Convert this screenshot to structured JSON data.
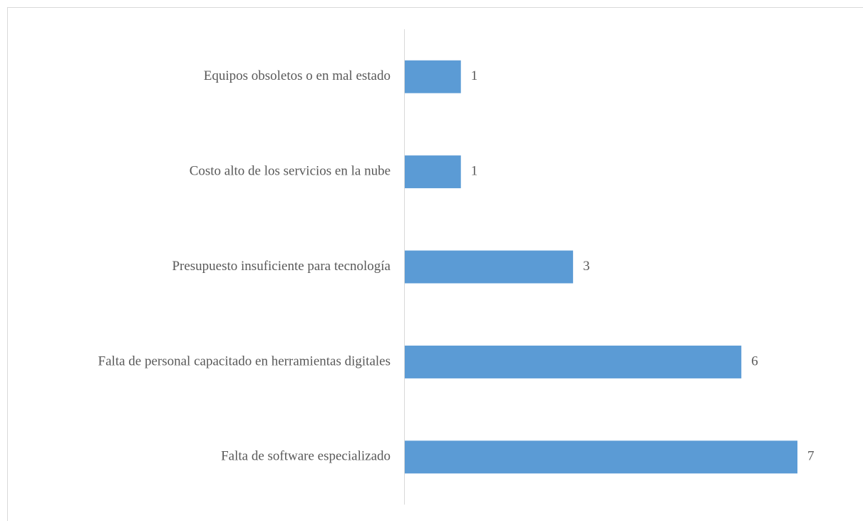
{
  "chart_data": {
    "type": "barh",
    "categories": [
      "Equipos obsoletos o en mal estado",
      "Costo alto de los servicios en la nube",
      "Presupuesto insuficiente para tecnología",
      "Falta de personal capacitado en herramientas digitales",
      "Falta de software especializado"
    ],
    "values": [
      1,
      1,
      3,
      6,
      7
    ],
    "color": "#5b9bd5",
    "xlim": [
      0,
      7
    ]
  }
}
